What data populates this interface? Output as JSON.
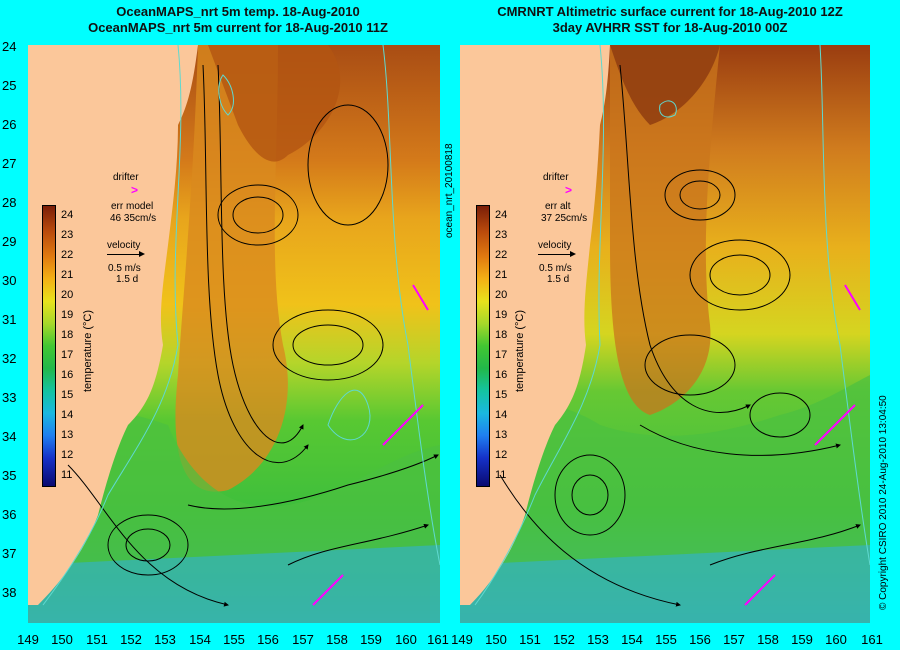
{
  "left_panel": {
    "title_line1": "OceanMAPS_nrt 5m temp. 18-Aug-2010",
    "title_line2": "OceanMAPS_nrt 5m current for 18-Aug-2010 11Z",
    "drifter_label": "drifter",
    "drifter_marker": ">",
    "err_label": "err model",
    "err_value": "46 35cm/s",
    "velocity_label": "velocity",
    "velocity_value": "0.5 m/s",
    "velocity_time": "1.5 d"
  },
  "right_panel": {
    "title_line1": "CMRNRT Altimetric surface current for 18-Aug-2010 12Z",
    "title_line2": "3day AVHRR SST for 18-Aug-2010 00Z",
    "drifter_label": "drifter",
    "drifter_marker": ">",
    "err_label": "err alt",
    "err_value": "37 25cm/s",
    "velocity_label": "velocity",
    "velocity_value": "0.5 m/s",
    "velocity_time": "1.5 d"
  },
  "side_labels": {
    "middle": "ocean_nrt_20100818",
    "right": "© Copyright CSIRO 2010   24-Aug-2010 13:04:50"
  },
  "colorbar": {
    "title": "temperature (°C)",
    "ticks": [
      "24",
      "23",
      "22",
      "21",
      "20",
      "19",
      "18",
      "17",
      "16",
      "15",
      "14",
      "13",
      "12",
      "11"
    ]
  },
  "y_ticks": [
    "24",
    "25",
    "26",
    "27",
    "28",
    "29",
    "30",
    "31",
    "32",
    "33",
    "34",
    "35",
    "36",
    "37",
    "38"
  ],
  "x_ticks": [
    "149",
    "150",
    "151",
    "152",
    "153",
    "154",
    "155",
    "156",
    "157",
    "158",
    "159",
    "160",
    "161"
  ],
  "colors": {
    "background": "#00ffff",
    "land": "#fbc79a",
    "drifter": "#ff00ff",
    "contour": "#5fd9d0"
  }
}
